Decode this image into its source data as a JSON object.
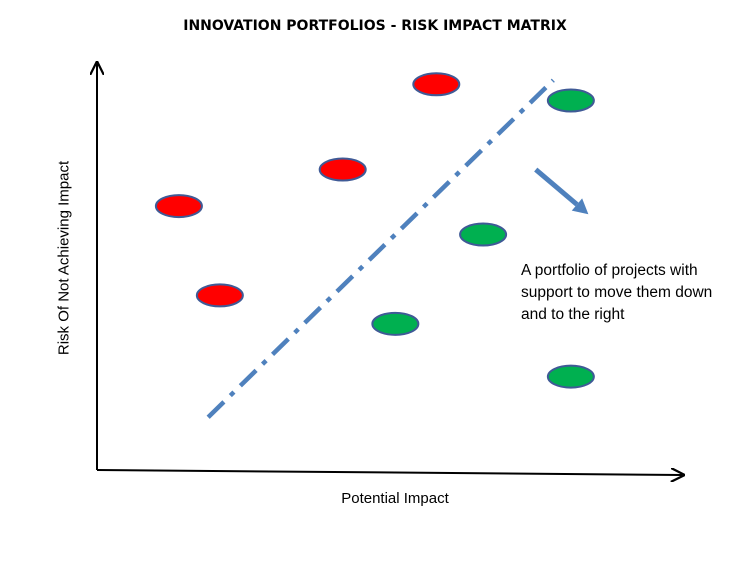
{
  "title": "INNOVATION PORTFOLIOS - RISK IMPACT MATRIX",
  "axes": {
    "x_label": "Potential Impact",
    "y_label": "Risk Of Not Achieving Impact"
  },
  "annotation": "A portfolio of projects with support to move them down and to the right",
  "colors": {
    "high_risk": "#ff0000",
    "low_risk": "#00b050",
    "marker_outline": "#3f5a96",
    "divider_line": "#4f81bd",
    "arrow": "#4f81bd",
    "axis": "#000000"
  },
  "chart_data": {
    "type": "scatter",
    "series": [
      {
        "color": "high_risk",
        "points": [
          [
            0.14,
            0.65
          ],
          [
            0.21,
            0.43
          ],
          [
            0.42,
            0.74
          ],
          [
            0.58,
            0.95
          ]
        ]
      },
      {
        "color": "low_risk",
        "points": [
          [
            0.51,
            0.36
          ],
          [
            0.66,
            0.58
          ],
          [
            0.81,
            0.91
          ],
          [
            0.81,
            0.23
          ]
        ]
      }
    ],
    "divider": {
      "style": "dash-dot",
      "from": [
        0.19,
        0.13
      ],
      "to": [
        0.78,
        0.96
      ]
    },
    "arrow": {
      "from": [
        0.75,
        0.74
      ],
      "to": [
        0.84,
        0.63
      ]
    },
    "xlim": [
      0,
      1
    ],
    "ylim": [
      0,
      1
    ],
    "grid": false
  }
}
